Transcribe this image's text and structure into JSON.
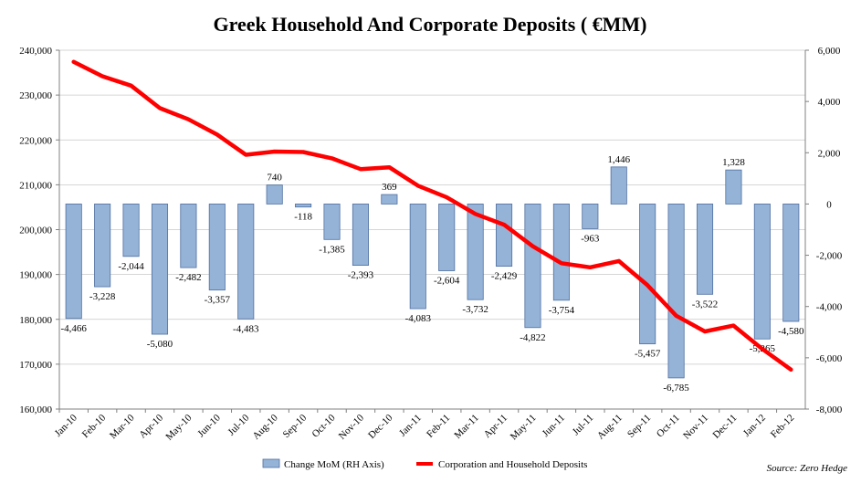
{
  "chart_data": {
    "type": "bar+line",
    "title": "Greek Household And Corporate Deposits ( €MM)",
    "source": "Source: Zero Hedge",
    "categories": [
      "Jan-10",
      "Feb-10",
      "Mar-10",
      "Apr-10",
      "May-10",
      "Jun-10",
      "Jul-10",
      "Aug-10",
      "Sep-10",
      "Oct-10",
      "Nov-10",
      "Dec-10",
      "Jan-11",
      "Feb-11",
      "Mar-11",
      "Apr-11",
      "May-11",
      "Jun-11",
      "Jul-11",
      "Aug-11",
      "Sep-11",
      "Oct-11",
      "Nov-11",
      "Dec-11",
      "Jan-12",
      "Feb-12"
    ],
    "left_axis": {
      "min": 160000,
      "max": 240000,
      "step": 10000,
      "tick_labels": [
        "160,000",
        "170,000",
        "180,000",
        "190,000",
        "200,000",
        "210,000",
        "220,000",
        "230,000",
        "240,000"
      ]
    },
    "right_axis": {
      "min": -8000,
      "max": 6000,
      "step": 2000,
      "tick_labels": [
        "-8,000",
        "-6,000",
        "-4,000",
        "-2,000",
        "0",
        "2,000",
        "4,000",
        "6,000"
      ]
    },
    "series": [
      {
        "name": "Change MoM (RH Axis)",
        "type": "bar",
        "axis": "right",
        "color": "#95b3d7",
        "values": [
          -4466,
          -3228,
          -2044,
          -5080,
          -2482,
          -3357,
          -4483,
          740,
          -118,
          -1385,
          -2393,
          369,
          -4083,
          -2604,
          -3732,
          -2429,
          -4822,
          -3754,
          -963,
          1446,
          -5457,
          -6785,
          -3522,
          1328,
          -5265,
          -4580
        ],
        "labels": [
          "-4,466",
          "-3,228",
          "-2,044",
          "-5,080",
          "-2,482",
          "-3,357",
          "-4,483",
          "740",
          "-118",
          "-1,385",
          "-2,393",
          "369",
          "-4,083",
          "-2,604",
          "-3,732",
          "-2,429",
          "-4,822",
          "-3,754",
          "-963",
          "1,446",
          "-5,457",
          "-6,785",
          "-3,522",
          "1,328",
          "-5,265",
          "-4,580"
        ]
      },
      {
        "name": "Corporation and Household Deposits",
        "type": "line",
        "axis": "left",
        "color": "#ff0000",
        "values": [
          237400,
          234200,
          232100,
          227100,
          224600,
          221200,
          216700,
          217400,
          217300,
          215900,
          213500,
          213900,
          209800,
          207200,
          203500,
          201100,
          196300,
          192500,
          191600,
          193000,
          187600,
          180800,
          177300,
          178600,
          173400,
          168800
        ]
      }
    ]
  }
}
